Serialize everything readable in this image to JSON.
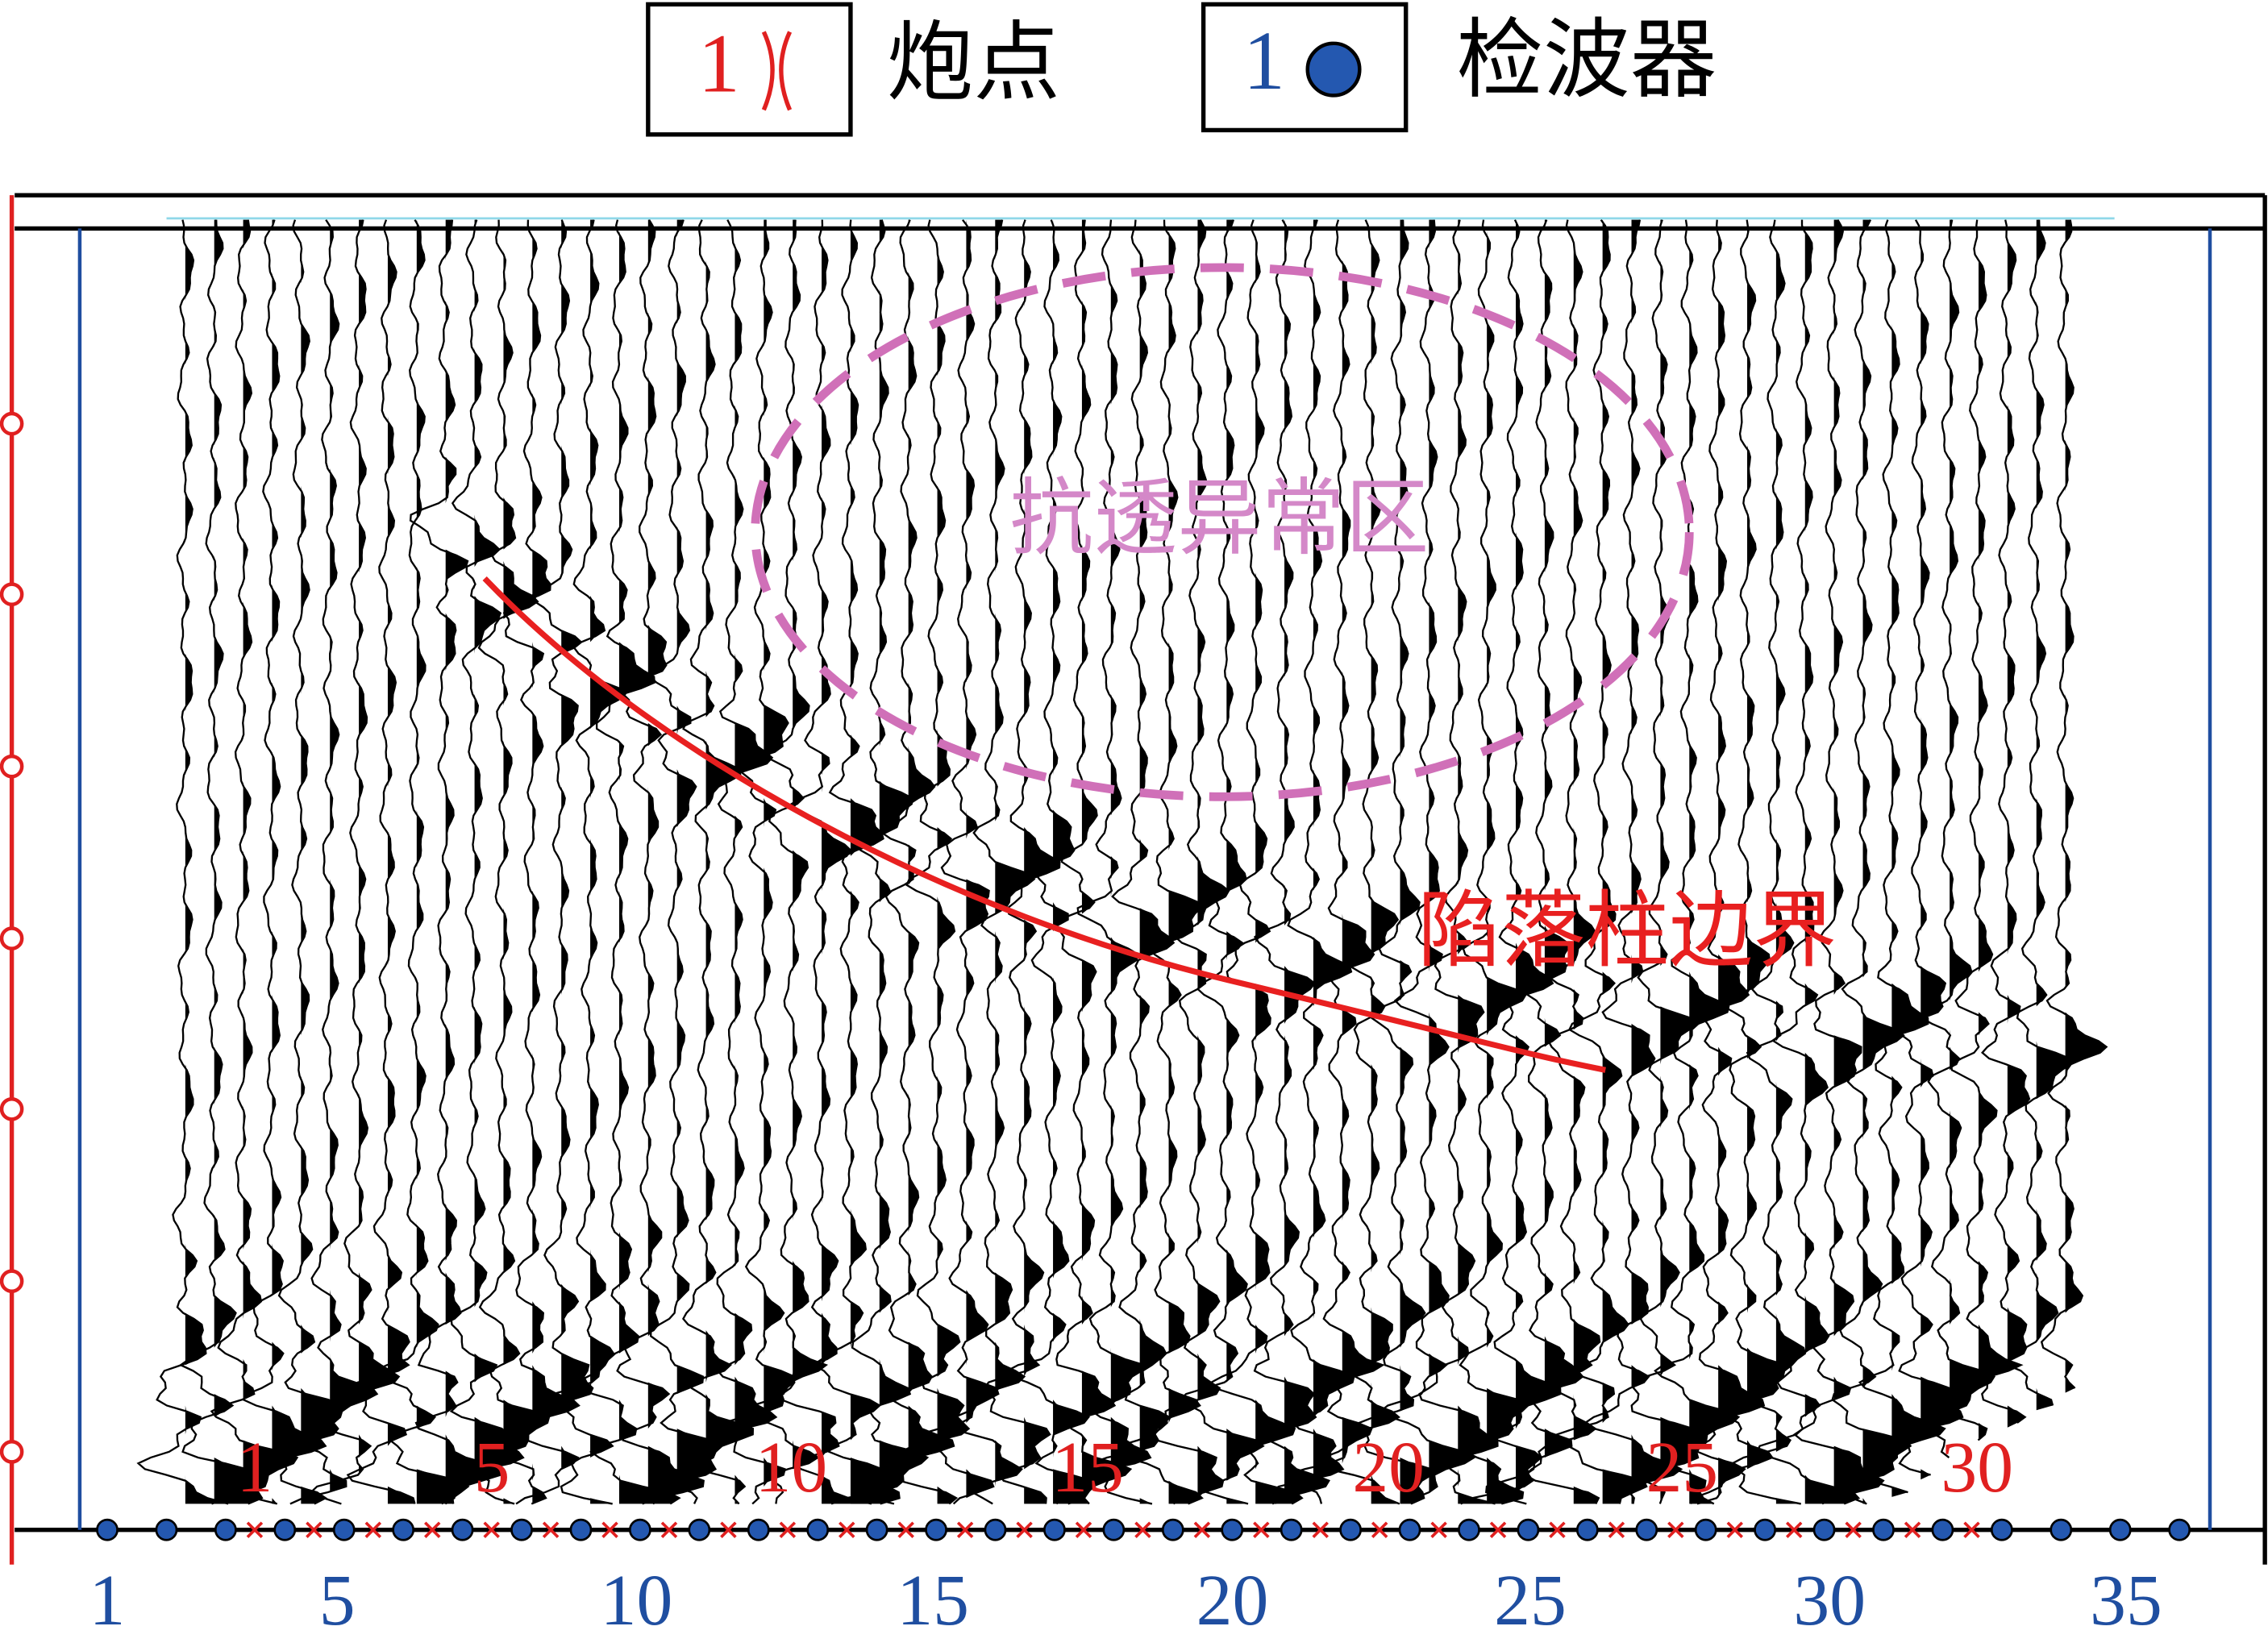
{
  "legend": {
    "shot": {
      "number": "1",
      "label": "炮点"
    },
    "receiver": {
      "number": "1",
      "label": "检波器"
    }
  },
  "annotations": {
    "anomaly": "抗透异常区",
    "boundary": "陷落柱边界"
  },
  "shot_labels": [
    "1",
    "5",
    "10",
    "15",
    "20",
    "25",
    "30"
  ],
  "receiver_labels": [
    "1",
    "5",
    "10",
    "15",
    "20",
    "25",
    "30",
    "35"
  ]
}
